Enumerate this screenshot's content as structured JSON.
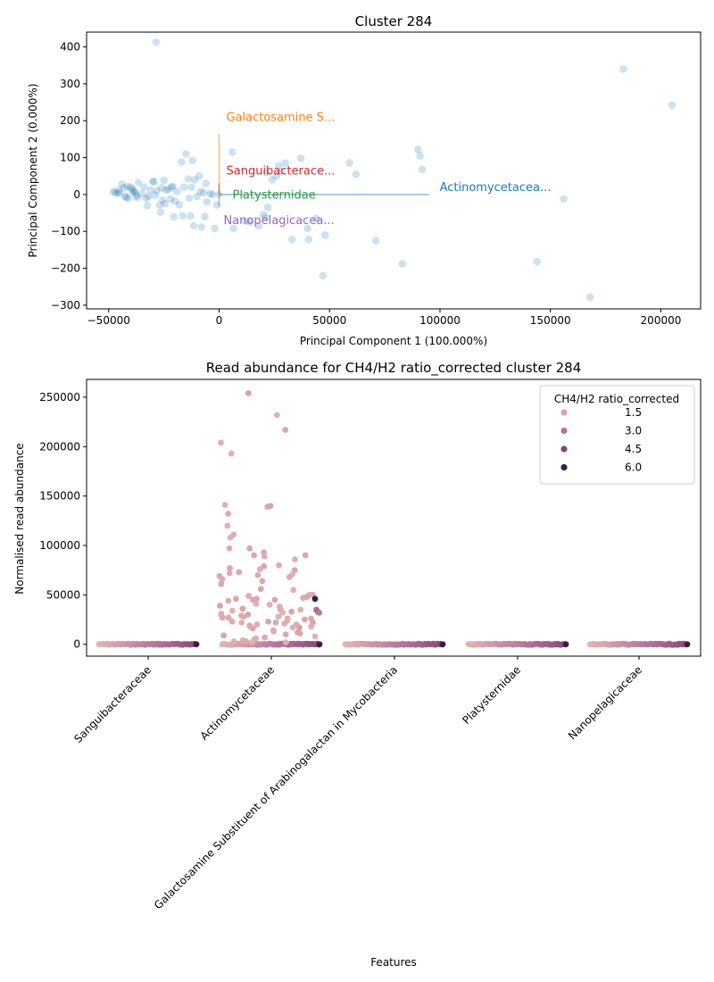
{
  "chart_data": [
    {
      "type": "scatter",
      "title": "Cluster 284",
      "xlabel": "Principal Component 1 (100.000%)",
      "ylabel": "Principal Component 2 (0.000%)",
      "xlim": [
        -60000,
        218000
      ],
      "ylim": [
        -310000,
        440000
      ],
      "y_scale_note": "",
      "xticks": [
        -50000,
        0,
        50000,
        100000,
        150000,
        200000
      ],
      "xtick_labels": [
        "−50000",
        "0",
        "50000",
        "100000",
        "150000",
        "200000"
      ],
      "yticks": [
        -300,
        -200,
        -100,
        0,
        100,
        200,
        300,
        400
      ],
      "ytick_labels": [
        "−300",
        "−200",
        "−100",
        "0",
        "100",
        "200",
        "300",
        "400"
      ],
      "grid": false,
      "point_color": "#1f77b4",
      "points": [
        [
          -48000,
          8
        ],
        [
          -47000,
          5
        ],
        [
          -46000,
          3
        ],
        [
          -45500,
          12
        ],
        [
          -45000,
          4
        ],
        [
          -44000,
          28
        ],
        [
          -43000,
          18
        ],
        [
          -42500,
          -5
        ],
        [
          -42000,
          -8
        ],
        [
          -41500,
          22
        ],
        [
          -41000,
          -10
        ],
        [
          -40000,
          20
        ],
        [
          -39500,
          15
        ],
        [
          -39000,
          8
        ],
        [
          -38500,
          10
        ],
        [
          -38000,
          5
        ],
        [
          -37500,
          -3
        ],
        [
          -37000,
          -8
        ],
        [
          -36500,
          32
        ],
        [
          -35000,
          2
        ],
        [
          -34000,
          20
        ],
        [
          -33000,
          -10
        ],
        [
          -32500,
          -30
        ],
        [
          -32000,
          -5
        ],
        [
          -31000,
          12
        ],
        [
          -30000,
          36
        ],
        [
          -29500,
          34
        ],
        [
          -29000,
          -2
        ],
        [
          -28500,
          413
        ],
        [
          -28000,
          10
        ],
        [
          -27000,
          -28
        ],
        [
          -26500,
          -48
        ],
        [
          -26000,
          18
        ],
        [
          -25500,
          -15
        ],
        [
          -25000,
          38
        ],
        [
          -24500,
          -25
        ],
        [
          -24000,
          12
        ],
        [
          -23000,
          14
        ],
        [
          -22000,
          -12
        ],
        [
          -21500,
          20
        ],
        [
          -21000,
          22
        ],
        [
          -20500,
          -60
        ],
        [
          -20000,
          -18
        ],
        [
          -19000,
          8
        ],
        [
          -18000,
          -28
        ],
        [
          -17000,
          88
        ],
        [
          -16500,
          -58
        ],
        [
          -16000,
          20
        ],
        [
          -15000,
          110
        ],
        [
          -14000,
          42
        ],
        [
          -13500,
          -10
        ],
        [
          -13000,
          -58
        ],
        [
          -12500,
          20
        ],
        [
          -12000,
          92
        ],
        [
          -11500,
          -85
        ],
        [
          -11000,
          40
        ],
        [
          -10000,
          -5
        ],
        [
          -9000,
          50
        ],
        [
          -8500,
          8
        ],
        [
          -8000,
          -88
        ],
        [
          -7000,
          5
        ],
        [
          -6500,
          -60
        ],
        [
          -6000,
          30
        ],
        [
          -5500,
          -20
        ],
        [
          -4000,
          2
        ],
        [
          -3000,
          0
        ],
        [
          -2000,
          -92
        ],
        [
          -1000,
          -28
        ],
        [
          0,
          0
        ],
        [
          6000,
          115
        ],
        [
          6500,
          -92
        ],
        [
          12000,
          -72
        ],
        [
          14000,
          -75
        ],
        [
          18000,
          -85
        ],
        [
          20000,
          -55
        ],
        [
          21000,
          -62
        ],
        [
          21500,
          60
        ],
        [
          22000,
          -35
        ],
        [
          24000,
          40
        ],
        [
          26000,
          50
        ],
        [
          27000,
          78
        ],
        [
          28000,
          62
        ],
        [
          30000,
          85
        ],
        [
          33000,
          -122
        ],
        [
          37000,
          98
        ],
        [
          40000,
          -92
        ],
        [
          40500,
          -122
        ],
        [
          44000,
          -65
        ],
        [
          47000,
          -220
        ],
        [
          48000,
          -110
        ],
        [
          59000,
          86
        ],
        [
          62000,
          55
        ],
        [
          71000,
          -125
        ],
        [
          83000,
          -188
        ],
        [
          90000,
          122
        ],
        [
          91000,
          105
        ],
        [
          92000,
          68
        ],
        [
          144000,
          -182
        ],
        [
          156000,
          -12
        ],
        [
          168000,
          -278
        ],
        [
          183000,
          340
        ],
        [
          205000,
          242
        ]
      ],
      "loadings": [
        {
          "name": "Galactosamine S...",
          "color": "#ff7f0e",
          "x": 0,
          "y": 165
        },
        {
          "name": "Sanguibacterace...",
          "color": "#d62728",
          "x": 0,
          "y": 30
        },
        {
          "name": "Platysternidae",
          "color": "#2ca02c",
          "x": 0,
          "y": -1
        },
        {
          "name": "Nanopelagicacea...",
          "color": "#9467bd",
          "x": 0,
          "y": -32
        },
        {
          "name": "Actinomycetacea...",
          "color": "#1f77b4",
          "x": 95000,
          "y": 0
        }
      ]
    },
    {
      "type": "strip",
      "title": "Read abundance for CH4/H2 ratio_corrected cluster 284",
      "xlabel": "Features",
      "ylabel": "Normalised read abundance",
      "categories": [
        "Sanguibacteraceae",
        "Actinomycetaceae",
        "Galactosamine Substituent of Arabinogalactan in Mycobacteria",
        "Platysternidae",
        "Nanopelagicaceae"
      ],
      "ylim": [
        -12000,
        268000
      ],
      "yticks": [
        0,
        50000,
        100000,
        150000,
        200000,
        250000
      ],
      "ytick_labels": [
        "0",
        "50000",
        "100000",
        "150000",
        "200000",
        "250000"
      ],
      "legend": {
        "title": "CH4/H2 ratio_corrected",
        "placement": "top-right",
        "entries": [
          {
            "label": "1.5",
            "value": 1.5
          },
          {
            "label": "3.0",
            "value": 3.0
          },
          {
            "label": "4.5",
            "value": 4.5
          },
          {
            "label": "6.0",
            "value": 6.0
          }
        ]
      },
      "actinomycetaceae_values": [
        254000,
        232000,
        217000,
        204000,
        193000,
        141000,
        139000,
        140000,
        132000,
        120000,
        111000,
        108000,
        97000,
        97000,
        93000,
        90000,
        90000,
        89000,
        86000,
        80000,
        79000,
        77000,
        76000,
        75000,
        73000,
        72000,
        71000,
        70000,
        69000,
        68000,
        66000,
        64000,
        61000,
        56000,
        55000,
        50000,
        50000,
        49000,
        48000,
        47000,
        46000,
        46000,
        45000,
        45000,
        44000,
        41000,
        40000,
        39000,
        38000,
        36000,
        36000,
        35000,
        35000,
        34000,
        33000,
        32000,
        31000,
        30000,
        30000,
        29000,
        28000,
        28000,
        27000,
        27000,
        26000,
        26000,
        25000,
        24000,
        23000,
        23000,
        22000,
        22000,
        22000,
        21000,
        20000,
        20000,
        19000,
        18000,
        18000,
        17000,
        17000,
        16000,
        14000,
        13000,
        12000,
        11000,
        10000,
        9000,
        8000,
        7000,
        6000,
        5000,
        4000,
        3000,
        3000,
        2000,
        2000
      ],
      "actinomycetaceae_high_ratio": [
        {
          "value": 46000,
          "ratio": 6.0
        },
        {
          "value": 35000,
          "ratio": 3.2
        },
        {
          "value": 33000,
          "ratio": 3.5
        },
        {
          "value": 32000,
          "ratio": 2.8
        }
      ],
      "other_categories_value": 0
    }
  ]
}
